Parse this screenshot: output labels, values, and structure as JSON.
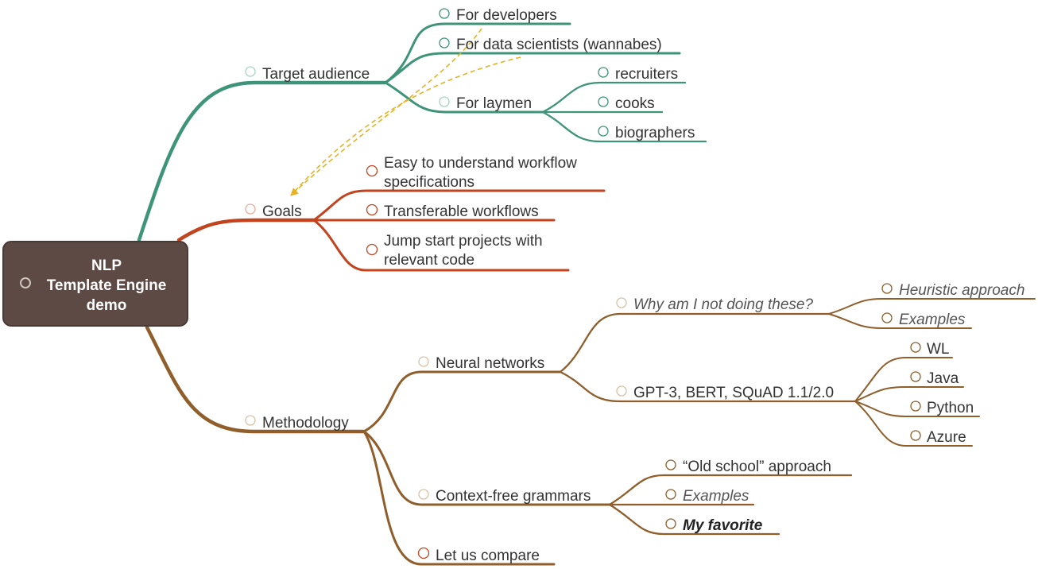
{
  "root": {
    "lines": [
      "NLP",
      "Template Engine",
      "demo"
    ]
  },
  "colors": {
    "green": "#3e9479",
    "red": "#c2441f",
    "brown": "#8f5e2b",
    "root_fill": "#5d4a45",
    "relation": "#e8b224"
  },
  "branches": {
    "target_audience": {
      "label": "Target audience",
      "children": {
        "developers": "For developers",
        "data_scientists": "For data scientists (wannabes)",
        "laymen": {
          "label": "For laymen",
          "children": [
            "recruiters",
            "cooks",
            "biographers"
          ]
        }
      }
    },
    "goals": {
      "label": "Goals",
      "children": {
        "easy": [
          "Easy to understand workflow",
          "specifications"
        ],
        "transferable": "Transferable workflows",
        "jump": [
          "Jump start projects with",
          "relevant code"
        ]
      }
    },
    "methodology": {
      "label": "Methodology",
      "children": {
        "neural": {
          "label": "Neural networks",
          "children": {
            "why": {
              "label": "Why am I not doing these?",
              "children": [
                "Heuristic approach",
                "Examples"
              ]
            },
            "gpt": {
              "label": "GPT-3, BERT, SQuAD 1.1/2.0",
              "children": [
                "WL",
                "Java",
                "Python",
                "Azure"
              ]
            }
          }
        },
        "cfg": {
          "label": "Context-free grammars",
          "children": [
            "“Old school” approach",
            "Examples",
            "My favorite"
          ]
        },
        "compare": "Let us compare"
      }
    }
  }
}
